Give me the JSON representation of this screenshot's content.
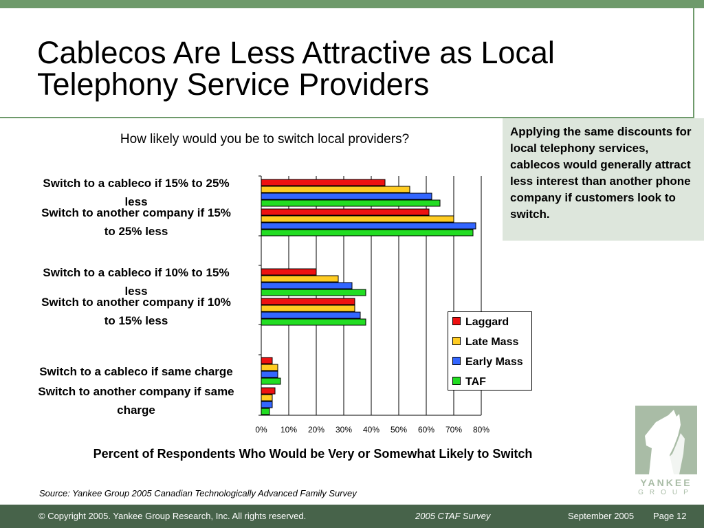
{
  "slide": {
    "title_lines": [
      "Cablecos Are Less Attractive as Local",
      "Telephony Service Providers"
    ],
    "callout": "Applying the same discounts for local telephony services, cablecos would generally attract less interest than another phone company if customers look to switch.",
    "source": "Source: Yankee Group 2005 Canadian Technologically Advanced Family Survey"
  },
  "footer": {
    "copyright": "© Copyright 2005. Yankee Group Research, Inc.  All rights reserved.",
    "survey": "2005 CTAF Survey",
    "date": "September 2005",
    "page": "Page 12"
  },
  "logo": {
    "line1": "YANKEE",
    "line2": "GROUP"
  },
  "colors": {
    "accent_green": "#6e9a6b",
    "footer_green": "#47634a",
    "callout_bg": "#dde6dc",
    "Laggard": "#ee1111",
    "Late Mass": "#ffcc22",
    "Early Mass": "#3366ff",
    "TAF": "#22dd22"
  },
  "chart_data": {
    "type": "bar",
    "orientation": "horizontal",
    "title": "How likely would you be to switch local providers?",
    "xlabel": "Percent of Respondents Who Would be Very or Somewhat Likely to Switch",
    "ylabel": "",
    "xlim": [
      0,
      80
    ],
    "xticks": [
      "0%",
      "10%",
      "20%",
      "30%",
      "40%",
      "50%",
      "60%",
      "70%",
      "80%"
    ],
    "grid": true,
    "legend_position": "bottom-right",
    "categories": [
      "Switch to a cableco if 15% to 25% less",
      "Switch to another company if 15% to 25% less",
      "Switch to a cableco if 10% to 15% less",
      "Switch to another company if 10% to 15% less",
      "Switch to a cableco if same charge",
      "Switch to another company if same charge"
    ],
    "series": [
      {
        "name": "Laggard",
        "values": [
          45,
          61,
          20,
          34,
          4,
          5
        ]
      },
      {
        "name": "Late Mass",
        "values": [
          54,
          70,
          28,
          34,
          6,
          4
        ]
      },
      {
        "name": "Early Mass",
        "values": [
          62,
          78,
          33,
          36,
          6,
          4
        ]
      },
      {
        "name": "TAF",
        "values": [
          65,
          77,
          38,
          38,
          7,
          3
        ]
      }
    ]
  }
}
